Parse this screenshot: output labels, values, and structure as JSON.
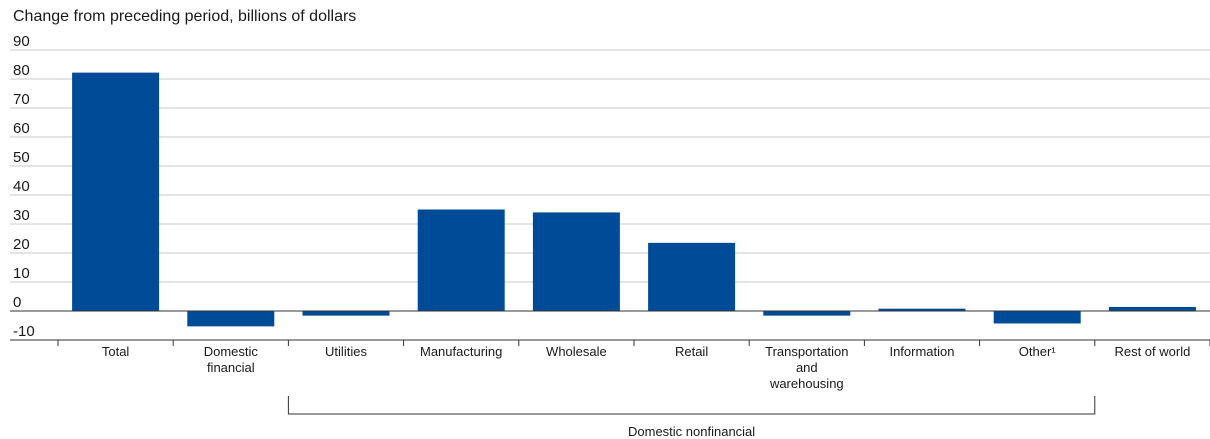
{
  "chart_data": {
    "type": "bar",
    "title": "Change from preceding period, billions of dollars",
    "categories": [
      [
        "Total"
      ],
      [
        "Domestic",
        "financial"
      ],
      [
        "Utilities"
      ],
      [
        "Manufacturing"
      ],
      [
        "Wholesale"
      ],
      [
        "Retail"
      ],
      [
        "Transportation",
        "and",
        "warehousing"
      ],
      [
        "Information"
      ],
      [
        "Other¹"
      ],
      [
        "Rest of world"
      ]
    ],
    "values": [
      82.2,
      -5.3,
      -1.6,
      35.0,
      34.0,
      23.5,
      -1.6,
      0.8,
      -4.3,
      1.4
    ],
    "ylim": [
      -10,
      90
    ],
    "yticks": [
      "90",
      "80",
      "70",
      "60",
      "50",
      "40",
      "30",
      "20",
      "10",
      "0",
      "-10"
    ],
    "ytick_values": [
      90,
      80,
      70,
      60,
      50,
      40,
      30,
      20,
      10,
      0,
      -10
    ],
    "group_label": "Domestic nonfinancial",
    "group_range": [
      2,
      8
    ],
    "bar_color": "#004b97",
    "grid": true
  }
}
